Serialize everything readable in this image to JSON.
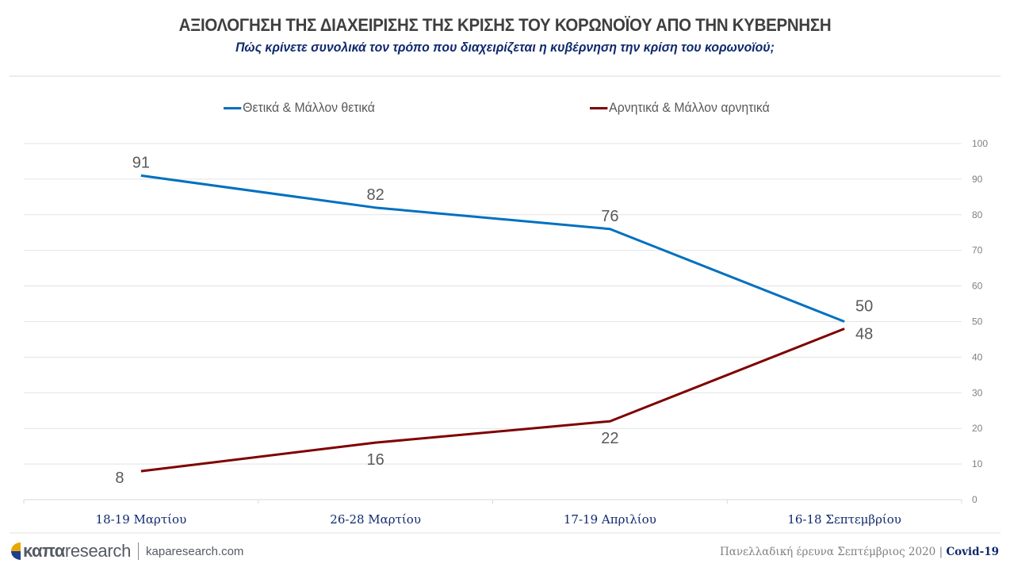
{
  "header": {
    "title": "ΑΞΙΟΛΟΓΗΣΗ ΤΗΣ ΔΙΑΧΕΙΡΙΣΗΣ ΤΗΣ ΚΡΙΣΗΣ ΤΟΥ ΚΟΡΩΝΟΪΟΥ ΑΠΟ ΤΗΝ ΚΥΒΕΡΝΗΣΗ",
    "subtitle": "Πώς κρίνετε συνολικά τον τρόπο που διαχειρίζεται η κυβέρνηση την κρίση του κορωνοϊού;"
  },
  "chart_data": {
    "type": "line",
    "title": "ΑΞΙΟΛΟΓΗΣΗ ΤΗΣ ΔΙΑΧΕΙΡΙΣΗΣ ΤΗΣ ΚΡΙΣΗΣ ΤΟΥ ΚΟΡΩΝΟΪΟΥ ΑΠΟ ΤΗΝ ΚΥΒΕΡΝΗΣΗ",
    "subtitle": "Πώς κρίνετε συνολικά τον τρόπο που διαχειρίζεται η κυβέρνηση την κρίση του κορωνοϊού;",
    "categories": [
      "18-19 Μαρτίου",
      "26-28 Μαρτίου",
      "17-19 Απριλίου",
      "16-18 Σεπτεμβρίου"
    ],
    "series": [
      {
        "name": "Θετικά & Μάλλον θετικά",
        "values": [
          91,
          82,
          76,
          50
        ],
        "color": "#0070C0",
        "label_position": "above"
      },
      {
        "name": "Αρνητικά & Μάλλον αρνητικά",
        "values": [
          8,
          16,
          22,
          48
        ],
        "color": "#7F0000",
        "label_position": "below"
      }
    ],
    "xlabel": "",
    "ylabel": "",
    "ylim": [
      0,
      100
    ],
    "yticks": [
      0,
      10,
      20,
      30,
      40,
      50,
      60,
      70,
      80,
      90,
      100
    ],
    "y_axis_side": "right",
    "grid": true,
    "legend_position": "top"
  },
  "footer": {
    "brand_bold": "καπα",
    "brand_light": "research",
    "url": "kaparesearch.com",
    "survey": "Πανελλαδική έρευνα Σεπτέμβριος 2020",
    "separator": "|",
    "tag": "Covid-19"
  }
}
